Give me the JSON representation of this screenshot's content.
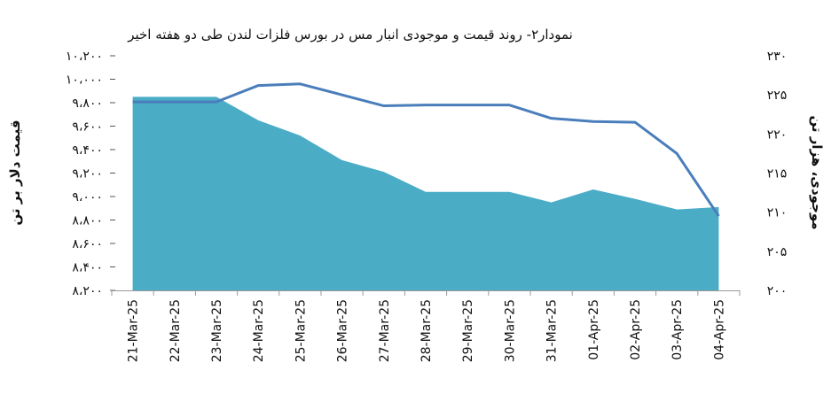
{
  "chart_data": {
    "type": "area+line",
    "title": "نمودار۲- روند قیمت و موجودی انبار مس در بورس فلزات لندن طی دو هفته اخیر",
    "categories": [
      "21-Mar-25",
      "22-Mar-25",
      "23-Mar-25",
      "24-Mar-25",
      "25-Mar-25",
      "26-Mar-25",
      "27-Mar-25",
      "28-Mar-25",
      "29-Mar-25",
      "30-Mar-25",
      "31-Mar-25",
      "01-Apr-25",
      "02-Apr-25",
      "03-Apr-25",
      "04-Apr-25"
    ],
    "left_axis": {
      "label": "قیمت دلار بر تن",
      "ylim": [
        8200,
        10200
      ],
      "ticks": [
        "۸،۲۰۰",
        "۸،۴۰۰",
        "۸،۶۰۰",
        "۸،۸۰۰",
        "۹،۰۰۰",
        "۹،۲۰۰",
        "۹،۴۰۰",
        "۹،۶۰۰",
        "۹،۸۰۰",
        "۱۰،۰۰۰",
        "۱۰،۲۰۰"
      ]
    },
    "right_axis": {
      "label": "موجودی، هزار تن",
      "ylim": [
        200,
        230
      ],
      "ticks": [
        "۲۰۰",
        "۲۰۵",
        "۲۱۰",
        "۲۱۵",
        "۲۲۰",
        "۲۲۵",
        "۲۳۰"
      ]
    },
    "series": [
      {
        "axis": "left",
        "kind": "area",
        "color": "#4bacc6",
        "values": [
          9850,
          9850,
          9850,
          9650,
          9520,
          9310,
          9210,
          9040,
          9040,
          9040,
          8950,
          9060,
          8980,
          8890,
          8910
        ]
      },
      {
        "axis": "right",
        "kind": "line",
        "color": "#4a7ebb",
        "values": [
          224.1,
          224.1,
          224.1,
          226.2,
          226.4,
          225.0,
          223.6,
          223.7,
          223.7,
          223.7,
          222.0,
          221.6,
          221.5,
          217.5,
          209.5
        ]
      }
    ],
    "grid": false,
    "legend": "none"
  }
}
